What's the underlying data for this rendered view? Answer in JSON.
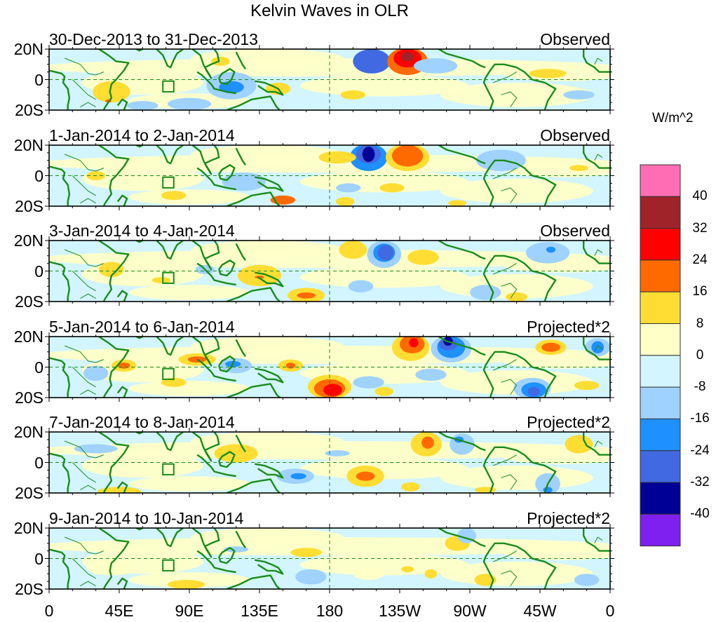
{
  "chart_data": {
    "type": "heatmap",
    "title": "Kelvin Waves in OLR",
    "xlabel": "",
    "ylabel": "",
    "x_range_deg": [
      0,
      360
    ],
    "y_range_deg": [
      -20,
      20
    ],
    "x_tick_labels": [
      "0",
      "45E",
      "90E",
      "135E",
      "180",
      "135W",
      "90W",
      "45W",
      "0"
    ],
    "x_tick_values": [
      0,
      45,
      90,
      135,
      180,
      225,
      270,
      315,
      360
    ],
    "y_tick_labels": [
      "20N",
      "0",
      "20S"
    ],
    "y_tick_values": [
      20,
      0,
      -20
    ],
    "colorbar": {
      "unit": "W/m^2",
      "levels": [
        40,
        32,
        24,
        16,
        8,
        0,
        -8,
        -16,
        -24,
        -32,
        -40
      ],
      "colors": [
        "#ff6eb4",
        "#a0232a",
        "#ff0000",
        "#ff6a00",
        "#ffdd33",
        "#ffffc8",
        "#d2f5ff",
        "#a0d2ff",
        "#1e90ff",
        "#4169e1",
        "#000096",
        "#8020f0"
      ]
    },
    "panels": [
      {
        "date_range": "30-Dec-2013 to 31-Dec-2013",
        "kind": "Observed",
        "background": 0,
        "anomalies": [
          {
            "lon": 207,
            "lat": 12,
            "wlon": 12,
            "wlat": 8,
            "level": -24
          },
          {
            "lon": 207,
            "lat": 14,
            "wlon": 7,
            "wlat": 5,
            "level": -24
          },
          {
            "lon": 230,
            "lat": 12,
            "wlon": 13,
            "wlat": 9,
            "level": 16
          },
          {
            "lon": 230,
            "lat": 14,
            "wlon": 9,
            "wlat": 6,
            "level": 24
          },
          {
            "lon": 230,
            "lat": 15,
            "wlon": 4,
            "wlat": 3,
            "level": 32
          },
          {
            "lon": 117,
            "lat": -4,
            "wlon": 16,
            "wlat": 9,
            "level": -8
          },
          {
            "lon": 117,
            "lat": -5,
            "wlon": 8,
            "wlat": 4,
            "level": -16
          },
          {
            "lon": 40,
            "lat": -8,
            "wlon": 12,
            "wlat": 7,
            "level": 8
          },
          {
            "lon": 38,
            "lat": -14,
            "wlon": 2,
            "wlat": 1,
            "level": 16
          },
          {
            "lon": 320,
            "lat": 4,
            "wlon": 12,
            "wlat": 3,
            "level": 8
          },
          {
            "lon": 90,
            "lat": -16,
            "wlon": 14,
            "wlat": 4,
            "level": -8
          },
          {
            "lon": 60,
            "lat": -17,
            "wlon": 10,
            "wlat": 3,
            "level": -8
          },
          {
            "lon": 147,
            "lat": -6,
            "wlon": 8,
            "wlat": 4,
            "level": 8
          },
          {
            "lon": 248,
            "lat": 9,
            "wlon": 14,
            "wlat": 5,
            "level": -8
          },
          {
            "lon": 340,
            "lat": -10,
            "wlon": 10,
            "wlat": 3,
            "level": -8
          },
          {
            "lon": 195,
            "lat": -10,
            "wlon": 8,
            "wlat": 3,
            "level": 8
          },
          {
            "lon": 110,
            "lat": 12,
            "wlon": 6,
            "wlat": 3,
            "level": 8
          }
        ]
      },
      {
        "date_range": "1-Jan-2014 to 2-Jan-2014",
        "kind": "Observed",
        "background": 0,
        "anomalies": [
          {
            "lon": 205,
            "lat": 12,
            "wlon": 12,
            "wlat": 9,
            "level": -16
          },
          {
            "lon": 205,
            "lat": 14,
            "wlon": 8,
            "wlat": 6,
            "level": -24
          },
          {
            "lon": 205,
            "lat": 14,
            "wlon": 4,
            "wlat": 5,
            "level": -32
          },
          {
            "lon": 230,
            "lat": 12,
            "wlon": 14,
            "wlat": 9,
            "level": 8
          },
          {
            "lon": 230,
            "lat": 13,
            "wlon": 10,
            "wlat": 7,
            "level": 16
          },
          {
            "lon": 185,
            "lat": 12,
            "wlon": 12,
            "wlat": 4,
            "level": 8
          },
          {
            "lon": 290,
            "lat": 10,
            "wlon": 16,
            "wlat": 7,
            "level": -8
          },
          {
            "lon": 125,
            "lat": -4,
            "wlon": 14,
            "wlat": 6,
            "level": -8
          },
          {
            "lon": 30,
            "lat": 0,
            "wlon": 6,
            "wlat": 3,
            "level": 8
          },
          {
            "lon": 220,
            "lat": -8,
            "wlon": 8,
            "wlat": 3,
            "level": 8
          },
          {
            "lon": 192,
            "lat": -8,
            "wlon": 8,
            "wlat": 3,
            "level": -8
          },
          {
            "lon": 190,
            "lat": -17,
            "wlon": 6,
            "wlat": 3,
            "level": 8
          },
          {
            "lon": 150,
            "lat": -16,
            "wlon": 8,
            "wlat": 3,
            "level": 16
          },
          {
            "lon": 80,
            "lat": -13,
            "wlon": 8,
            "wlat": 3,
            "level": 8
          },
          {
            "lon": 340,
            "lat": 5,
            "wlon": 6,
            "wlat": 2,
            "level": 8
          },
          {
            "lon": 262,
            "lat": -18,
            "wlon": 6,
            "wlat": 2,
            "level": 8
          }
        ]
      },
      {
        "date_range": "3-Jan-2014 to 4-Jan-2014",
        "kind": "Observed",
        "background": 0,
        "anomalies": [
          {
            "lon": 215,
            "lat": 11,
            "wlon": 11,
            "wlat": 9,
            "level": -8
          },
          {
            "lon": 215,
            "lat": 12,
            "wlon": 7,
            "wlat": 6,
            "level": -16
          },
          {
            "lon": 216,
            "lat": 12,
            "wlon": 5,
            "wlat": 5,
            "level": -24
          },
          {
            "lon": 195,
            "lat": 14,
            "wlon": 9,
            "wlat": 6,
            "level": 8
          },
          {
            "lon": 240,
            "lat": 9,
            "wlon": 10,
            "wlat": 5,
            "level": 8
          },
          {
            "lon": 320,
            "lat": 12,
            "wlon": 14,
            "wlat": 7,
            "level": -8
          },
          {
            "lon": 322,
            "lat": 14,
            "wlon": 3,
            "wlat": 2,
            "level": -16
          },
          {
            "lon": 135,
            "lat": -3,
            "wlon": 14,
            "wlat": 7,
            "level": 8
          },
          {
            "lon": 135,
            "lat": -4,
            "wlon": 3,
            "wlat": 1,
            "level": 16
          },
          {
            "lon": 165,
            "lat": -16,
            "wlon": 12,
            "wlat": 5,
            "level": 8
          },
          {
            "lon": 165,
            "lat": -16,
            "wlon": 6,
            "wlat": 2,
            "level": 16
          },
          {
            "lon": 40,
            "lat": 1,
            "wlon": 8,
            "wlat": 5,
            "level": 8
          },
          {
            "lon": 100,
            "lat": 1,
            "wlon": 6,
            "wlat": 3,
            "level": -8
          },
          {
            "lon": 200,
            "lat": -10,
            "wlon": 8,
            "wlat": 4,
            "level": -8
          },
          {
            "lon": 280,
            "lat": -14,
            "wlon": 10,
            "wlat": 5,
            "level": -8
          },
          {
            "lon": 300,
            "lat": -17,
            "wlon": 7,
            "wlat": 3,
            "level": 8
          },
          {
            "lon": 72,
            "lat": -6,
            "wlon": 6,
            "wlat": 2,
            "level": 8
          }
        ]
      },
      {
        "date_range": "5-Jan-2014 to 6-Jan-2014",
        "kind": "Projected*2",
        "background": 0,
        "anomalies": [
          {
            "lon": 232,
            "lat": 13,
            "wlon": 12,
            "wlat": 9,
            "level": 8
          },
          {
            "lon": 233,
            "lat": 15,
            "wlon": 8,
            "wlat": 6,
            "level": 16
          },
          {
            "lon": 234,
            "lat": 16,
            "wlon": 3,
            "wlat": 3,
            "level": 24
          },
          {
            "lon": 258,
            "lat": 12,
            "wlon": 13,
            "wlat": 9,
            "level": -8
          },
          {
            "lon": 258,
            "lat": 13,
            "wlon": 9,
            "wlat": 7,
            "level": -16
          },
          {
            "lon": 256,
            "lat": 15,
            "wlon": 6,
            "wlat": 4,
            "level": -24
          },
          {
            "lon": 256,
            "lat": 17,
            "wlon": 3,
            "wlat": 3,
            "level": -32
          },
          {
            "lon": 180,
            "lat": -13,
            "wlon": 14,
            "wlat": 8,
            "level": 8
          },
          {
            "lon": 180,
            "lat": -14,
            "wlon": 10,
            "wlat": 6,
            "level": 16
          },
          {
            "lon": 182,
            "lat": -15,
            "wlon": 6,
            "wlat": 4,
            "level": 24
          },
          {
            "lon": 310,
            "lat": -14,
            "wlon": 12,
            "wlat": 7,
            "level": -8
          },
          {
            "lon": 311,
            "lat": -15,
            "wlon": 8,
            "wlat": 5,
            "level": -16
          },
          {
            "lon": 311,
            "lat": -16,
            "wlon": 4,
            "wlat": 3,
            "level": -24
          },
          {
            "lon": 322,
            "lat": 13,
            "wlon": 10,
            "wlat": 5,
            "level": 8
          },
          {
            "lon": 322,
            "lat": 13,
            "wlon": 6,
            "wlat": 3,
            "level": 16
          },
          {
            "lon": 352,
            "lat": 13,
            "wlon": 8,
            "wlat": 6,
            "level": -8
          },
          {
            "lon": 352,
            "lat": 13,
            "wlon": 4,
            "wlat": 4,
            "level": -16
          },
          {
            "lon": 48,
            "lat": 1,
            "wlon": 8,
            "wlat": 4,
            "level": 8
          },
          {
            "lon": 48,
            "lat": 1,
            "wlon": 4,
            "wlat": 2,
            "level": 16
          },
          {
            "lon": 95,
            "lat": 5,
            "wlon": 12,
            "wlat": 4,
            "level": 8
          },
          {
            "lon": 95,
            "lat": 5,
            "wlon": 6,
            "wlat": 2,
            "level": 16
          },
          {
            "lon": 155,
            "lat": 1,
            "wlon": 8,
            "wlat": 4,
            "level": 8
          },
          {
            "lon": 155,
            "lat": 1,
            "wlon": 3,
            "wlat": 2,
            "level": 16
          },
          {
            "lon": 120,
            "lat": 1,
            "wlon": 10,
            "wlat": 5,
            "level": -8
          },
          {
            "lon": 118,
            "lat": 2,
            "wlon": 5,
            "wlat": 2,
            "level": -16
          },
          {
            "lon": 30,
            "lat": -4,
            "wlon": 8,
            "wlat": 5,
            "level": -8
          },
          {
            "lon": 205,
            "lat": -10,
            "wlon": 10,
            "wlat": 4,
            "level": -8
          },
          {
            "lon": 245,
            "lat": -5,
            "wlon": 10,
            "wlat": 4,
            "level": -8
          },
          {
            "lon": 345,
            "lat": -12,
            "wlon": 8,
            "wlat": 3,
            "level": 8
          },
          {
            "lon": 215,
            "lat": -16,
            "wlon": 6,
            "wlat": 3,
            "level": 8
          },
          {
            "lon": 80,
            "lat": -10,
            "wlon": 8,
            "wlat": 3,
            "level": 8
          }
        ]
      },
      {
        "date_range": "7-Jan-2014 to 8-Jan-2014",
        "kind": "Projected*2",
        "background": 0,
        "anomalies": [
          {
            "lon": 242,
            "lat": 12,
            "wlon": 10,
            "wlat": 8,
            "level": 8
          },
          {
            "lon": 243,
            "lat": 13,
            "wlon": 4,
            "wlat": 4,
            "level": 16
          },
          {
            "lon": 203,
            "lat": -9,
            "wlon": 12,
            "wlat": 7,
            "level": 8
          },
          {
            "lon": 203,
            "lat": -9,
            "wlon": 6,
            "wlat": 3,
            "level": 16
          },
          {
            "lon": 265,
            "lat": 12,
            "wlon": 8,
            "wlat": 7,
            "level": -8
          },
          {
            "lon": 263,
            "lat": 15,
            "wlon": 3,
            "wlat": 2,
            "level": -16
          },
          {
            "lon": 158,
            "lat": -9,
            "wlon": 12,
            "wlat": 5,
            "level": -8
          },
          {
            "lon": 160,
            "lat": -9,
            "wlon": 5,
            "wlat": 2,
            "level": -16
          },
          {
            "lon": 120,
            "lat": 6,
            "wlon": 14,
            "wlat": 6,
            "level": 8
          },
          {
            "lon": 340,
            "lat": 12,
            "wlon": 9,
            "wlat": 6,
            "level": 8
          },
          {
            "lon": 320,
            "lat": -14,
            "wlon": 8,
            "wlat": 7,
            "level": -8
          },
          {
            "lon": 320,
            "lat": -18,
            "wlon": 3,
            "wlat": 2,
            "level": -16
          },
          {
            "lon": 45,
            "lat": -19,
            "wlon": 14,
            "wlat": 3,
            "level": 8
          },
          {
            "lon": 30,
            "lat": 9,
            "wlon": 14,
            "wlat": 3,
            "level": -8
          },
          {
            "lon": 185,
            "lat": 6,
            "wlon": 8,
            "wlat": 2,
            "level": -8
          },
          {
            "lon": 232,
            "lat": -16,
            "wlon": 6,
            "wlat": 3,
            "level": 8
          },
          {
            "lon": 280,
            "lat": -18,
            "wlon": 7,
            "wlat": 2,
            "level": 8
          }
        ]
      },
      {
        "date_range": "9-Jan-2014 to 10-Jan-2014",
        "kind": "Projected*2",
        "background": 0,
        "anomalies": [
          {
            "lon": 165,
            "lat": 4,
            "wlon": 10,
            "wlat": 3,
            "level": 8
          },
          {
            "lon": 262,
            "lat": 10,
            "wlon": 8,
            "wlat": 5,
            "level": 8
          },
          {
            "lon": 268,
            "lat": 15,
            "wlon": 6,
            "wlat": 5,
            "level": -8
          },
          {
            "lon": 88,
            "lat": -17,
            "wlon": 12,
            "wlat": 3,
            "level": 8
          },
          {
            "lon": 205,
            "lat": -10,
            "wlon": 10,
            "wlat": 4,
            "level": 0
          },
          {
            "lon": 168,
            "lat": -12,
            "wlon": 10,
            "wlat": 5,
            "level": -8
          },
          {
            "lon": 280,
            "lat": -14,
            "wlon": 7,
            "wlat": 4,
            "level": 8
          },
          {
            "lon": 345,
            "lat": -14,
            "wlon": 8,
            "wlat": 4,
            "level": -8
          },
          {
            "lon": 40,
            "lat": -6,
            "wlon": 16,
            "wlat": 5,
            "level": 0
          },
          {
            "lon": 120,
            "lat": 6,
            "wlon": 8,
            "wlat": 2,
            "level": -8
          },
          {
            "lon": 230,
            "lat": -7,
            "wlon": 4,
            "wlat": 2,
            "level": 8
          },
          {
            "lon": 245,
            "lat": -10,
            "wlon": 4,
            "wlat": 3,
            "level": 8
          }
        ]
      }
    ]
  }
}
